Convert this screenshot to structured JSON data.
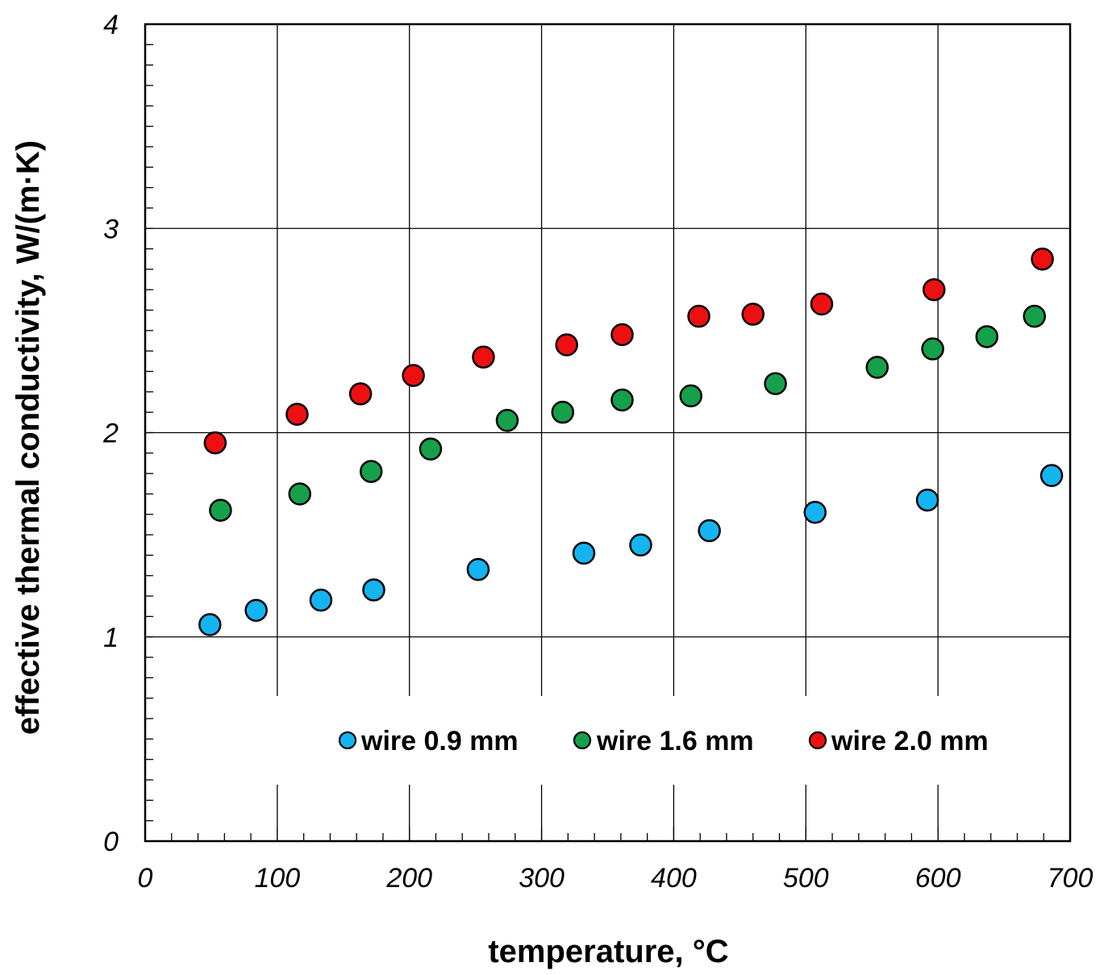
{
  "chart_data": {
    "type": "scatter",
    "title": "",
    "xlabel": "temperature, °C",
    "ylabel": "effective thermal conductivity, W/(m·K)",
    "xlim": [
      0,
      700
    ],
    "ylim": [
      0,
      4
    ],
    "x_ticks": [
      0,
      100,
      200,
      300,
      400,
      500,
      600,
      700
    ],
    "y_ticks": [
      0,
      1,
      2,
      3,
      4
    ],
    "x_tick_labels": [
      "0",
      "100",
      "200",
      "300",
      "400",
      "500",
      "600",
      "700"
    ],
    "y_tick_labels": [
      "0",
      "1",
      "2",
      "3",
      "4"
    ],
    "grid": true,
    "legend_position": "lower-center",
    "series": [
      {
        "name": "wire 0.9 mm",
        "color": "#14b4f0",
        "points": [
          {
            "x": 49,
            "y": 1.06
          },
          {
            "x": 84,
            "y": 1.13
          },
          {
            "x": 133,
            "y": 1.18
          },
          {
            "x": 173,
            "y": 1.23
          },
          {
            "x": 252,
            "y": 1.33
          },
          {
            "x": 332,
            "y": 1.41
          },
          {
            "x": 375,
            "y": 1.45
          },
          {
            "x": 427,
            "y": 1.52
          },
          {
            "x": 507,
            "y": 1.61
          },
          {
            "x": 592,
            "y": 1.67
          },
          {
            "x": 686,
            "y": 1.79
          }
        ]
      },
      {
        "name": "wire 1.6 mm",
        "color": "#16a04a",
        "points": [
          {
            "x": 57,
            "y": 1.62
          },
          {
            "x": 117,
            "y": 1.7
          },
          {
            "x": 171,
            "y": 1.81
          },
          {
            "x": 216,
            "y": 1.92
          },
          {
            "x": 274,
            "y": 2.06
          },
          {
            "x": 316,
            "y": 2.1
          },
          {
            "x": 361,
            "y": 2.16
          },
          {
            "x": 413,
            "y": 2.18
          },
          {
            "x": 477,
            "y": 2.24
          },
          {
            "x": 554,
            "y": 2.32
          },
          {
            "x": 596,
            "y": 2.41
          },
          {
            "x": 637,
            "y": 2.47
          },
          {
            "x": 673,
            "y": 2.57
          }
        ]
      },
      {
        "name": "wire 2.0 mm",
        "color": "#ee1010",
        "points": [
          {
            "x": 53,
            "y": 1.95
          },
          {
            "x": 115,
            "y": 2.09
          },
          {
            "x": 163,
            "y": 2.19
          },
          {
            "x": 203,
            "y": 2.28
          },
          {
            "x": 256,
            "y": 2.37
          },
          {
            "x": 319,
            "y": 2.43
          },
          {
            "x": 361,
            "y": 2.48
          },
          {
            "x": 419,
            "y": 2.57
          },
          {
            "x": 460,
            "y": 2.58
          },
          {
            "x": 512,
            "y": 2.63
          },
          {
            "x": 597,
            "y": 2.7
          },
          {
            "x": 679,
            "y": 2.85
          }
        ]
      }
    ]
  }
}
